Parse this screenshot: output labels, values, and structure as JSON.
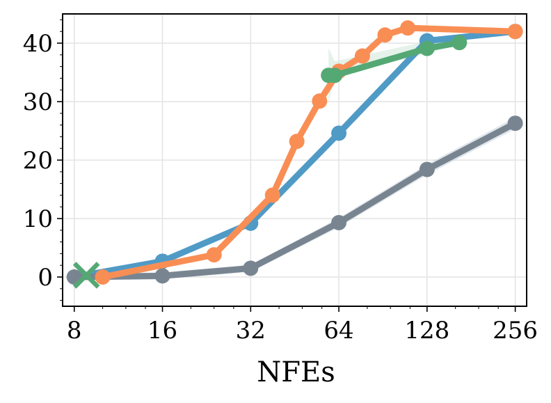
{
  "chart_data": {
    "type": "line",
    "title": "",
    "xlabel": "NFEs",
    "ylabel": "",
    "x_scale": "log2",
    "xlim": [
      7.3,
      280
    ],
    "ylim": [
      -5,
      45
    ],
    "grid": true,
    "x_ticks": [
      8,
      16,
      32,
      64,
      128,
      256
    ],
    "x_tick_labels": [
      "8",
      "16",
      "32",
      "64",
      "128",
      "256"
    ],
    "y_ticks": [
      0,
      10,
      20,
      30,
      40
    ],
    "y_tick_labels": [
      "0",
      "10",
      "20",
      "30",
      "40"
    ],
    "series": [
      {
        "color": "#509AC6",
        "marker": "circle",
        "points": [
          [
            8,
            0
          ],
          [
            16,
            2.7
          ],
          [
            32,
            9.2
          ],
          [
            64,
            24.6
          ],
          [
            128,
            40.4
          ],
          [
            256,
            42
          ]
        ]
      },
      {
        "color": "#788591",
        "marker": "circle",
        "band_color": "#C9D3DD",
        "band": [
          0.6,
          0.6,
          0.6,
          0.8,
          0.9,
          1.0
        ],
        "points": [
          [
            8,
            0
          ],
          [
            16,
            0.2
          ],
          [
            32,
            1.5
          ],
          [
            64,
            9.3
          ],
          [
            128,
            18.4
          ],
          [
            256,
            26.3
          ]
        ]
      },
      {
        "color": "#F98E55",
        "marker": "circle",
        "points": [
          [
            10,
            0
          ],
          [
            24,
            3.8
          ],
          [
            38,
            14
          ],
          [
            46,
            23.2
          ],
          [
            55,
            30.1
          ],
          [
            64,
            35.2
          ],
          [
            77,
            37.8
          ],
          [
            92,
            41.4
          ],
          [
            110,
            42.6
          ],
          [
            256,
            42
          ]
        ]
      },
      {
        "color": "#54A874",
        "marker": "circle",
        "band_color": "#CFE8D8",
        "band_lower": [
          29.8,
          34.3,
          38.2,
          39.8
        ],
        "band_upper": [
          39.2,
          36.9,
          40.3,
          40.6
        ],
        "points": [
          [
            59,
            34.5
          ],
          [
            62,
            34.5
          ],
          [
            128,
            39.1
          ],
          [
            165,
            40.1
          ]
        ]
      },
      {
        "color": "#54A874",
        "marker": "x",
        "points": [
          [
            8.8,
            0.3
          ]
        ]
      }
    ]
  }
}
